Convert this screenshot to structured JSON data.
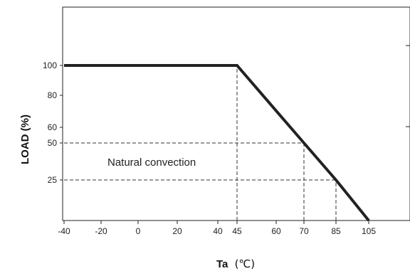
{
  "chart_data": {
    "type": "line",
    "xlabel": "Ta",
    "xlabel_unit": "(℃)",
    "ylabel": "LOAD (%)",
    "annotation": "Natural convection",
    "xlim": [
      -40,
      105
    ],
    "ylim": [
      0,
      135
    ],
    "x_ticks": [
      -40,
      -20,
      0,
      20,
      40,
      45,
      60,
      70,
      85,
      105
    ],
    "y_ticks": [
      25,
      50,
      60,
      80,
      100
    ],
    "series": [
      {
        "x": [
          -40,
          45,
          70,
          85,
          105
        ],
        "y": [
          100,
          100,
          50,
          25,
          0
        ]
      }
    ],
    "reference_lines": [
      {
        "from": [
          -40,
          50
        ],
        "to": [
          70,
          50
        ]
      },
      {
        "from": [
          -40,
          25
        ],
        "to": [
          85,
          25
        ]
      },
      {
        "from": [
          45,
          0
        ],
        "to": [
          45,
          100
        ]
      },
      {
        "from": [
          70,
          0
        ],
        "to": [
          70,
          50
        ]
      },
      {
        "from": [
          85,
          0
        ],
        "to": [
          85,
          25
        ]
      }
    ],
    "grid": false,
    "legend": "none"
  }
}
